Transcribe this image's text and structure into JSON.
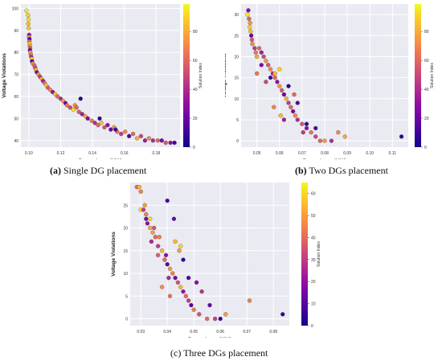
{
  "captions": {
    "a_label": "(a)",
    "a_text": "Single DG placement",
    "b_label": "(b)",
    "b_text": "Two DGs placement",
    "c_text": "(c) Three DGs placement"
  },
  "chart_data": [
    {
      "type": "scatter",
      "xlabel": "Power Loss (MW)",
      "ylabel": "Voltage Violations",
      "colorbar_label": "Solution Index",
      "colormap": "plasma",
      "xlim": [
        0.095,
        0.195
      ],
      "ylim": [
        37,
        102
      ],
      "xticks": [
        0.1,
        0.12,
        0.14,
        0.16,
        0.18
      ],
      "xtick_labels": [
        "0.10",
        "0.12",
        "0.14",
        "0.16",
        "0.18"
      ],
      "yticks": [
        40,
        50,
        60,
        70,
        80,
        90,
        100
      ],
      "ytick_labels": [
        "40",
        "50",
        "60",
        "70",
        "80",
        "90",
        "100"
      ],
      "cbar_ticks": [
        0,
        20,
        40,
        60,
        80
      ],
      "cbar_tick_labels": [
        "0",
        "20",
        "40",
        "60",
        "80"
      ],
      "cbar_max": 99,
      "grid": true,
      "points": [
        [
          0.0985,
          99,
          95
        ],
        [
          0.0995,
          97,
          90
        ],
        [
          0.0998,
          95,
          92
        ],
        [
          0.0996,
          93,
          85
        ],
        [
          0.0999,
          91,
          88
        ],
        [
          0.1002,
          88,
          30
        ],
        [
          0.1001,
          87,
          70
        ],
        [
          0.1004,
          86,
          10
        ],
        [
          0.1003,
          85,
          60
        ],
        [
          0.1006,
          84,
          90
        ],
        [
          0.1005,
          83,
          75
        ],
        [
          0.1008,
          82,
          55
        ],
        [
          0.1007,
          81,
          20
        ],
        [
          0.101,
          80,
          80
        ],
        [
          0.1012,
          79,
          65
        ],
        [
          0.1015,
          78,
          40
        ],
        [
          0.1018,
          77,
          95
        ],
        [
          0.102,
          76,
          15
        ],
        [
          0.1025,
          75,
          70
        ],
        [
          0.1035,
          74,
          60
        ],
        [
          0.104,
          73,
          50
        ],
        [
          0.1045,
          72,
          85
        ],
        [
          0.105,
          71,
          25
        ],
        [
          0.106,
          70,
          75
        ],
        [
          0.107,
          69,
          45
        ],
        [
          0.108,
          68,
          80
        ],
        [
          0.109,
          67,
          35
        ],
        [
          0.11,
          66,
          65
        ],
        [
          0.111,
          65,
          90
        ],
        [
          0.112,
          64,
          55
        ],
        [
          0.1135,
          63,
          70
        ],
        [
          0.115,
          62,
          30
        ],
        [
          0.1165,
          61,
          85
        ],
        [
          0.118,
          60,
          60
        ],
        [
          0.12,
          59,
          40
        ],
        [
          0.1215,
          58,
          75
        ],
        [
          0.123,
          57,
          20
        ],
        [
          0.124,
          56,
          65
        ],
        [
          0.126,
          55,
          50
        ],
        [
          0.128,
          54,
          95
        ],
        [
          0.129,
          56,
          70
        ],
        [
          0.13,
          55,
          60
        ],
        [
          0.1315,
          53,
          55
        ],
        [
          0.1335,
          52,
          35
        ],
        [
          0.1355,
          51,
          80
        ],
        [
          0.137,
          50,
          25
        ],
        [
          0.1395,
          49,
          65
        ],
        [
          0.1415,
          48,
          40
        ],
        [
          0.1435,
          47,
          60
        ],
        [
          0.1455,
          48,
          85
        ],
        [
          0.1475,
          46,
          55
        ],
        [
          0.1495,
          47,
          30
        ],
        [
          0.1515,
          45,
          20
        ],
        [
          0.1535,
          46,
          75
        ],
        [
          0.1555,
          44,
          65
        ],
        [
          0.158,
          43,
          45
        ],
        [
          0.1605,
          44,
          70
        ],
        [
          0.163,
          42,
          15
        ],
        [
          0.1655,
          43,
          60
        ],
        [
          0.168,
          41,
          80
        ],
        [
          0.1705,
          42,
          50
        ],
        [
          0.173,
          40,
          35
        ],
        [
          0.1755,
          41,
          70
        ],
        [
          0.178,
          40,
          40
        ],
        [
          0.181,
          40,
          60
        ],
        [
          0.1835,
          40,
          25
        ],
        [
          0.186,
          39,
          55
        ],
        [
          0.189,
          39,
          30
        ],
        [
          0.1915,
          39,
          10
        ],
        [
          0.1325,
          59,
          5
        ],
        [
          0.1445,
          50,
          8
        ],
        [
          0.1545,
          45,
          12
        ]
      ]
    },
    {
      "type": "scatter",
      "xlabel": "Power Loss (MW)",
      "ylabel": "Voltage Violations",
      "colorbar_label": "Solution Index",
      "colormap": "plasma",
      "xlim": [
        0.043,
        0.117
      ],
      "ylim": [
        -1.5,
        32.5
      ],
      "xticks": [
        0.05,
        0.06,
        0.07,
        0.08,
        0.09,
        0.1,
        0.11
      ],
      "xtick_labels": [
        "0.05",
        "0.06",
        "0.07",
        "0.08",
        "0.09",
        "0.10",
        "0.11"
      ],
      "yticks": [
        0,
        5,
        10,
        15,
        20,
        25,
        30
      ],
      "ytick_labels": [
        "0",
        "5",
        "10",
        "15",
        "20",
        "25",
        "30"
      ],
      "cbar_ticks": [
        0,
        20,
        40,
        60,
        80
      ],
      "cbar_tick_labels": [
        "0",
        "20",
        "40",
        "60",
        "80"
      ],
      "cbar_max": 99,
      "grid": true,
      "points": [
        [
          0.0462,
          31,
          30
        ],
        [
          0.0458,
          30,
          95
        ],
        [
          0.0465,
          29,
          60
        ],
        [
          0.047,
          28,
          75
        ],
        [
          0.0468,
          27,
          90
        ],
        [
          0.0472,
          26,
          85
        ],
        [
          0.0475,
          25,
          20
        ],
        [
          0.0478,
          24,
          55
        ],
        [
          0.048,
          23,
          70
        ],
        [
          0.049,
          22,
          45
        ],
        [
          0.0495,
          21,
          65
        ],
        [
          0.05,
          20,
          80
        ],
        [
          0.051,
          22,
          60
        ],
        [
          0.052,
          21,
          35
        ],
        [
          0.053,
          20,
          50
        ],
        [
          0.054,
          19,
          75
        ],
        [
          0.052,
          18,
          25
        ],
        [
          0.055,
          18,
          55
        ],
        [
          0.056,
          17,
          70
        ],
        [
          0.057,
          16,
          40
        ],
        [
          0.058,
          15,
          60
        ],
        [
          0.059,
          14,
          30
        ],
        [
          0.058,
          16,
          85
        ],
        [
          0.06,
          13,
          75
        ],
        [
          0.061,
          12,
          55
        ],
        [
          0.062,
          11,
          20
        ],
        [
          0.063,
          10,
          80
        ],
        [
          0.064,
          9,
          45
        ],
        [
          0.065,
          8,
          60
        ],
        [
          0.066,
          7,
          25
        ],
        [
          0.067,
          6,
          70
        ],
        [
          0.068,
          5,
          40
        ],
        [
          0.07,
          4,
          55
        ],
        [
          0.072,
          3,
          30
        ],
        [
          0.074,
          2,
          65
        ],
        [
          0.076,
          1,
          50
        ],
        [
          0.078,
          0,
          60
        ],
        [
          0.08,
          0,
          75
        ],
        [
          0.083,
          0,
          40
        ],
        [
          0.086,
          2,
          70
        ],
        [
          0.089,
          1,
          80
        ],
        [
          0.056,
          15,
          10
        ],
        [
          0.06,
          17,
          90
        ],
        [
          0.064,
          13,
          5
        ],
        [
          0.068,
          9,
          15
        ],
        [
          0.072,
          4,
          8
        ],
        [
          0.076,
          3,
          12
        ],
        [
          0.054,
          14,
          50
        ],
        [
          0.05,
          16,
          65
        ],
        [
          0.114,
          1,
          6
        ],
        [
          0.0605,
          6,
          85
        ],
        [
          0.062,
          5,
          35
        ],
        [
          0.0575,
          8,
          70
        ],
        [
          0.0665,
          11,
          60
        ],
        [
          0.0705,
          2,
          45
        ]
      ]
    },
    {
      "type": "scatter",
      "xlabel": "Power Loss (MW)",
      "ylabel": "Voltage Violations",
      "colorbar_label": "Solution Index",
      "colormap": "plasma",
      "xlim": [
        0.026,
        0.086
      ],
      "ylim": [
        -1.5,
        30
      ],
      "xticks": [
        0.03,
        0.04,
        0.05,
        0.06,
        0.07,
        0.08
      ],
      "xtick_labels": [
        "0.03",
        "0.04",
        "0.05",
        "0.06",
        "0.07",
        "0.08"
      ],
      "yticks": [
        0,
        5,
        10,
        15,
        20,
        25
      ],
      "ytick_labels": [
        "0",
        "5",
        "10",
        "15",
        "20",
        "25"
      ],
      "cbar_ticks": [
        0,
        10,
        20,
        30,
        40,
        50,
        60
      ],
      "cbar_tick_labels": [
        "0",
        "10",
        "20",
        "30",
        "40",
        "50",
        "60"
      ],
      "cbar_max": 65,
      "grid": true,
      "points": [
        [
          0.0285,
          29,
          40
        ],
        [
          0.0295,
          29,
          55
        ],
        [
          0.03,
          28,
          45
        ],
        [
          0.03,
          24,
          60
        ],
        [
          0.031,
          24,
          30
        ],
        [
          0.0315,
          25,
          50
        ],
        [
          0.032,
          23,
          45
        ],
        [
          0.032,
          22,
          15
        ],
        [
          0.0335,
          22,
          60
        ],
        [
          0.0325,
          21,
          20
        ],
        [
          0.035,
          20,
          35
        ],
        [
          0.0345,
          19,
          50
        ],
        [
          0.0355,
          18,
          40
        ],
        [
          0.034,
          17,
          25
        ],
        [
          0.037,
          18,
          45
        ],
        [
          0.0365,
          16,
          30
        ],
        [
          0.038,
          15,
          55
        ],
        [
          0.0395,
          14,
          20
        ],
        [
          0.039,
          13,
          40
        ],
        [
          0.04,
          12,
          10
        ],
        [
          0.041,
          11,
          50
        ],
        [
          0.0405,
          9,
          25
        ],
        [
          0.042,
          10,
          45
        ],
        [
          0.043,
          9,
          15
        ],
        [
          0.044,
          8,
          35
        ],
        [
          0.045,
          7,
          55
        ],
        [
          0.046,
          6,
          20
        ],
        [
          0.047,
          5,
          40
        ],
        [
          0.048,
          4,
          30
        ],
        [
          0.049,
          3,
          10
        ],
        [
          0.05,
          2,
          45
        ],
        [
          0.052,
          1,
          35
        ],
        [
          0.055,
          0,
          40
        ],
        [
          0.058,
          0,
          30
        ],
        [
          0.062,
          1,
          50
        ],
        [
          0.071,
          4,
          45
        ],
        [
          0.0835,
          1,
          5
        ],
        [
          0.04,
          26,
          8
        ],
        [
          0.043,
          17,
          55
        ],
        [
          0.045,
          16,
          60
        ],
        [
          0.0425,
          22,
          12
        ],
        [
          0.046,
          13,
          5
        ],
        [
          0.0445,
          15,
          50
        ],
        [
          0.048,
          9,
          8
        ],
        [
          0.051,
          8,
          18
        ],
        [
          0.053,
          6,
          28
        ],
        [
          0.056,
          3,
          12
        ],
        [
          0.06,
          0,
          5
        ],
        [
          0.0365,
          14,
          38
        ],
        [
          0.041,
          5,
          42
        ],
        [
          0.038,
          7,
          48
        ],
        [
          0.0335,
          20,
          52
        ]
      ]
    }
  ]
}
